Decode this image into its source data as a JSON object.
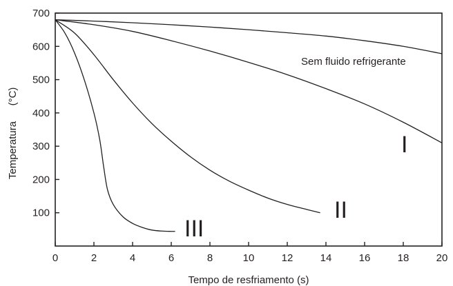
{
  "chart_data": {
    "type": "line",
    "xlabel": "Tempo de resfriamento (s)",
    "ylabel": "Temperatura",
    "ylabel_unit": "(°C)",
    "xlim": [
      0,
      20
    ],
    "ylim": [
      0,
      700
    ],
    "xticks": [
      0,
      2,
      4,
      6,
      8,
      10,
      12,
      14,
      16,
      18,
      20
    ],
    "yticks": [
      100,
      200,
      300,
      400,
      500,
      600,
      700
    ],
    "grid": false,
    "series": [
      {
        "name": "Sem fluido refrigerante",
        "x": [
          0,
          2,
          4,
          6,
          8,
          10,
          12,
          14,
          16,
          18,
          20
        ],
        "y": [
          680,
          676,
          671,
          665,
          658,
          650,
          641,
          631,
          617,
          600,
          578
        ]
      },
      {
        "name": "I",
        "x": [
          0,
          2,
          4,
          6,
          8,
          10,
          12,
          14,
          16,
          18,
          20
        ],
        "y": [
          680,
          665,
          645,
          617,
          586,
          552,
          515,
          473,
          427,
          372,
          310
        ]
      },
      {
        "name": "II",
        "x": [
          0,
          1,
          2,
          3,
          4,
          5,
          6,
          7,
          8,
          9,
          10,
          11,
          12,
          13,
          13.7
        ],
        "y": [
          680,
          640,
          575,
          500,
          430,
          368,
          315,
          268,
          228,
          195,
          168,
          144,
          125,
          110,
          100
        ]
      },
      {
        "name": "III",
        "x": [
          0,
          0.5,
          1,
          1.5,
          2,
          2.3,
          2.5,
          2.7,
          3,
          3.5,
          4,
          4.5,
          5,
          5.5,
          6,
          6.2
        ],
        "y": [
          680,
          640,
          580,
          500,
          400,
          320,
          240,
          170,
          125,
          88,
          68,
          56,
          48,
          45,
          44,
          44
        ]
      }
    ],
    "annotations": {
      "sem_fluido": "Sem fluido refrigerante",
      "curve_I": "I",
      "curve_II": "II",
      "curve_III": "III"
    }
  }
}
